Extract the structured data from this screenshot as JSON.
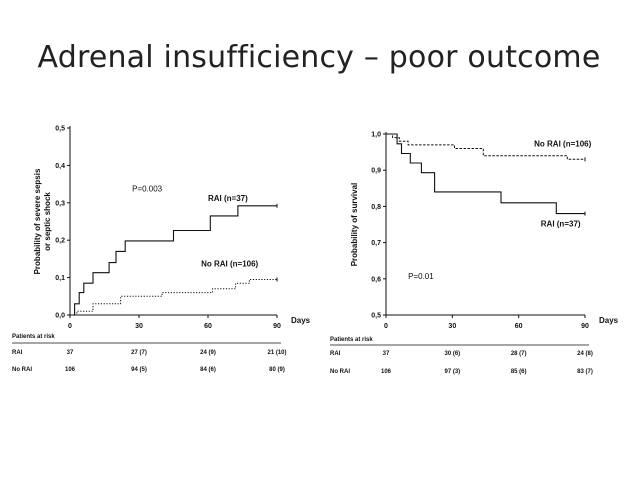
{
  "slide": {
    "title": "Adrenal insufficiency – poor outcome"
  },
  "chart_data": [
    {
      "type": "line",
      "ylabel_lines": [
        "Probability of severe sepsis",
        "or septic shock"
      ],
      "xlabel": "Days",
      "xlim": [
        0,
        90
      ],
      "ylim": [
        0,
        0.5
      ],
      "x_ticks": [
        0,
        30,
        60,
        90
      ],
      "x_tick_labels": [
        "0",
        "30",
        "60",
        "90"
      ],
      "y_ticks": [
        0,
        0.1,
        0.2,
        0.3,
        0.4,
        0.5
      ],
      "y_tick_labels": [
        "0,0",
        "0,1",
        "0,2",
        "0,3",
        "0,4",
        "0,5"
      ],
      "annotation": "P=0.003",
      "annotation_at": [
        27,
        0.33
      ],
      "series": [
        {
          "name": "RAI (n=37)",
          "style": "solid",
          "label_at": [
            60,
            0.305
          ],
          "x": [
            0,
            2,
            2,
            4,
            4,
            6,
            6,
            10,
            10,
            17,
            17,
            20,
            20,
            24,
            24,
            45,
            45,
            61,
            61,
            73,
            73,
            90
          ],
          "y": [
            0,
            0,
            0.03,
            0.03,
            0.06,
            0.06,
            0.085,
            0.085,
            0.113,
            0.113,
            0.14,
            0.14,
            0.17,
            0.17,
            0.198,
            0.198,
            0.226,
            0.226,
            0.265,
            0.265,
            0.292,
            0.292
          ]
        },
        {
          "name": "No RAI (n=106)",
          "style": "dotted",
          "label_at": [
            57,
            0.13
          ],
          "x": [
            0,
            3,
            3,
            10,
            10,
            22,
            22,
            40,
            40,
            62,
            62,
            72,
            72,
            78,
            78,
            90
          ],
          "y": [
            0,
            0,
            0.01,
            0.01,
            0.03,
            0.03,
            0.05,
            0.05,
            0.06,
            0.06,
            0.07,
            0.07,
            0.085,
            0.085,
            0.095,
            0.095
          ]
        }
      ],
      "risk_table": {
        "title": "Patients at risk",
        "rows": [
          {
            "label": "RAI",
            "values": [
              "37",
              "27 (7)",
              "24 (9)",
              "21 (10)"
            ]
          },
          {
            "label": "No RAI",
            "values": [
              "106",
              "94 (5)",
              "84 (6)",
              "80 (9)"
            ]
          }
        ]
      }
    },
    {
      "type": "line",
      "ylabel_lines": [
        "Probability of survival"
      ],
      "xlabel": "Days",
      "xlim": [
        0,
        90
      ],
      "ylim": [
        0.5,
        1.0
      ],
      "x_ticks": [
        0,
        30,
        60,
        90
      ],
      "x_tick_labels": [
        "0",
        "30",
        "60",
        "90"
      ],
      "y_ticks": [
        0.5,
        0.6,
        0.7,
        0.8,
        0.9,
        1.0
      ],
      "y_tick_labels": [
        "0,5",
        "0,6",
        "0,7",
        "0,8",
        "0,9",
        "1,0"
      ],
      "annotation": "P=0.01",
      "annotation_at": [
        10,
        0.6
      ],
      "series": [
        {
          "name": "No RAI (n=106)",
          "style": "dashed",
          "label_at": [
            67,
            0.965
          ],
          "x": [
            0,
            3,
            3,
            6,
            6,
            10,
            10,
            31,
            31,
            44,
            44,
            82,
            82,
            90
          ],
          "y": [
            1.0,
            1.0,
            0.99,
            0.99,
            0.98,
            0.98,
            0.97,
            0.97,
            0.96,
            0.96,
            0.94,
            0.94,
            0.93,
            0.93
          ]
        },
        {
          "name": "RAI (n=37)",
          "style": "solid",
          "label_at": [
            70,
            0.745
          ],
          "x": [
            0,
            5,
            5,
            7,
            7,
            11,
            11,
            16,
            16,
            22,
            22,
            52,
            52,
            77,
            77,
            90
          ],
          "y": [
            1.0,
            1.0,
            0.973,
            0.973,
            0.946,
            0.946,
            0.92,
            0.92,
            0.893,
            0.893,
            0.84,
            0.84,
            0.81,
            0.81,
            0.78,
            0.78
          ]
        }
      ],
      "risk_table": {
        "title": "Patients at risk",
        "rows": [
          {
            "label": "RAI",
            "values": [
              "37",
              "30 (6)",
              "28 (7)",
              "24 (8)"
            ]
          },
          {
            "label": "No RAI",
            "values": [
              "106",
              "97 (3)",
              "85 (6)",
              "83 (7)"
            ]
          }
        ]
      }
    }
  ]
}
